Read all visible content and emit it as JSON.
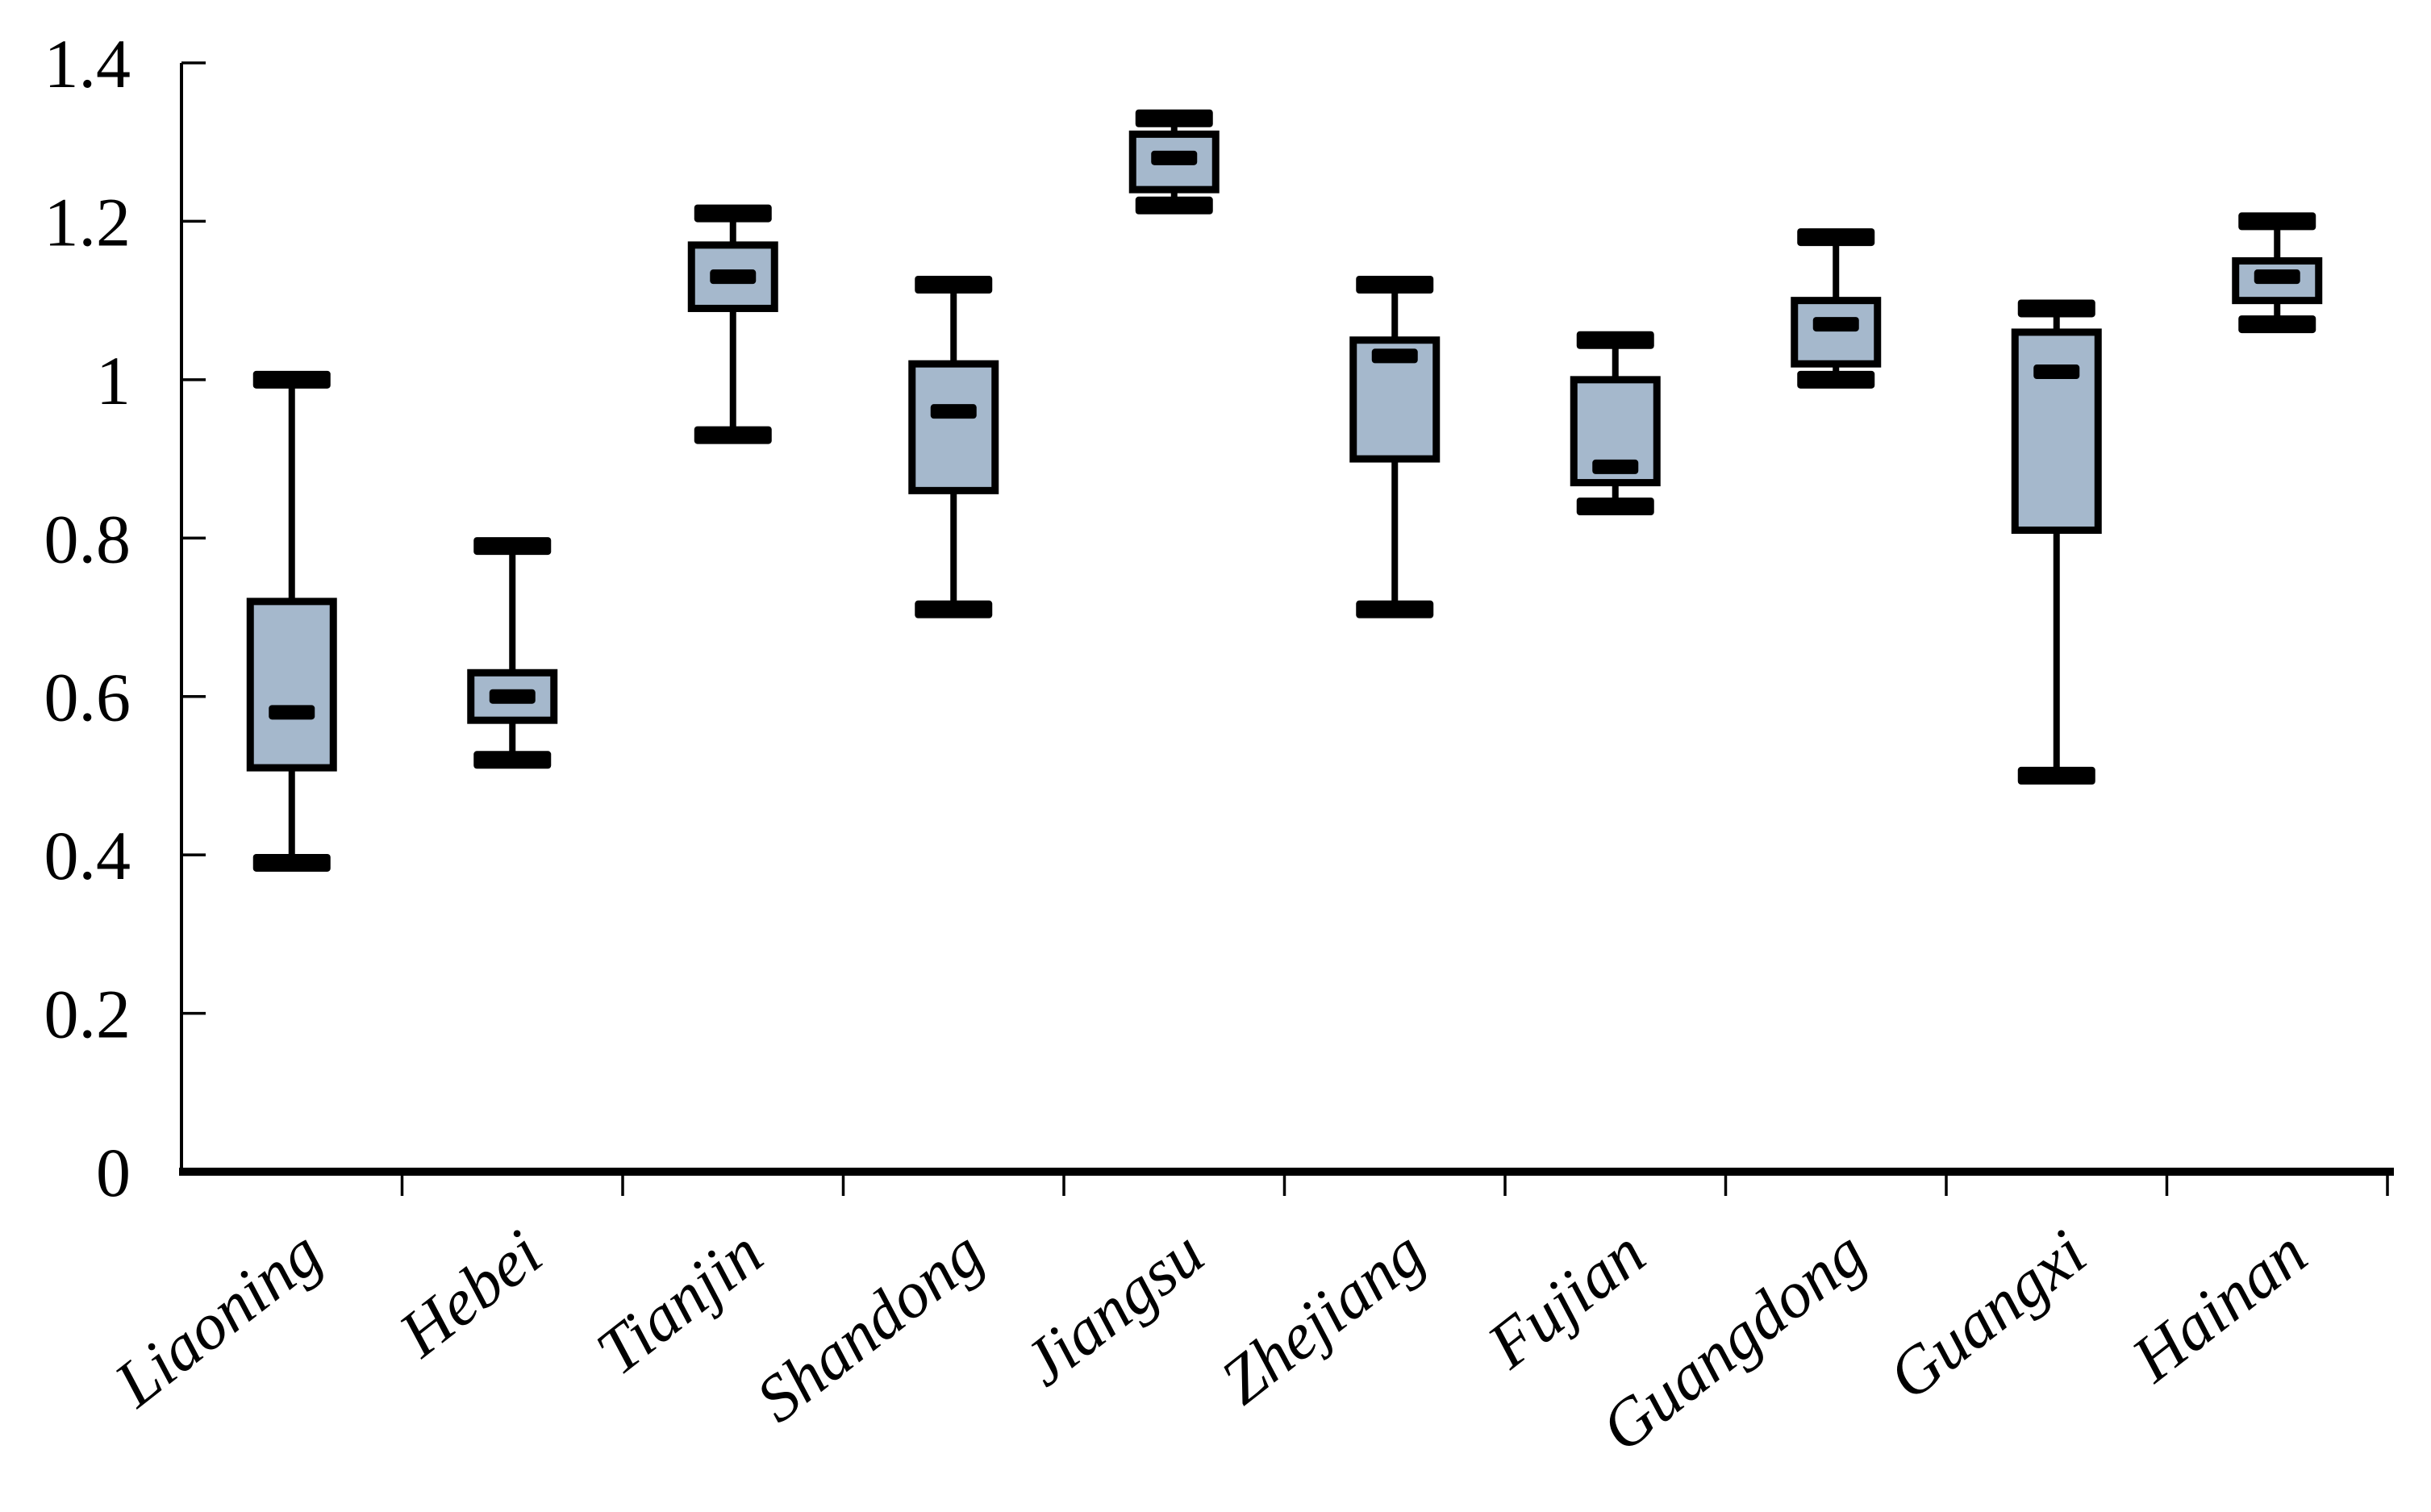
{
  "chart_data": {
    "type": "box",
    "title": "",
    "xlabel": "",
    "ylabel": "",
    "categories": [
      "Liaoning",
      "Hebei",
      "Tianjin",
      "Shandong",
      "Jiangsu",
      "Zhejiang",
      "Fujian",
      "Guangdong",
      "Guangxi",
      "Hainan"
    ],
    "series": [
      {
        "name": "Liaoning",
        "min": 0.39,
        "q1": 0.51,
        "median": 0.58,
        "q3": 0.72,
        "max": 1.0
      },
      {
        "name": "Hebei",
        "min": 0.52,
        "q1": 0.57,
        "median": 0.6,
        "q3": 0.63,
        "max": 0.79
      },
      {
        "name": "Tianjin",
        "min": 0.93,
        "q1": 1.09,
        "median": 1.13,
        "q3": 1.17,
        "max": 1.21
      },
      {
        "name": "Shandong",
        "min": 0.71,
        "q1": 0.86,
        "median": 0.96,
        "q3": 1.02,
        "max": 1.12
      },
      {
        "name": "Jiangsu",
        "min": 1.22,
        "q1": 1.24,
        "median": 1.28,
        "q3": 1.31,
        "max": 1.33
      },
      {
        "name": "Zhejiang",
        "min": 0.71,
        "q1": 0.9,
        "median": 1.03,
        "q3": 1.05,
        "max": 1.12
      },
      {
        "name": "Fujian",
        "min": 0.84,
        "q1": 0.87,
        "median": 0.89,
        "q3": 1.0,
        "max": 1.05
      },
      {
        "name": "Guangdong",
        "min": 1.0,
        "q1": 1.02,
        "median": 1.07,
        "q3": 1.1,
        "max": 1.18
      },
      {
        "name": "Guangxi",
        "min": 0.5,
        "q1": 0.81,
        "median": 1.01,
        "q3": 1.06,
        "max": 1.09
      },
      {
        "name": "Hainan",
        "min": 1.07,
        "q1": 1.1,
        "median": 1.13,
        "q3": 1.15,
        "max": 1.2
      }
    ],
    "y_axis": {
      "min": 0,
      "max": 1.4,
      "step": 0.2,
      "tick_labels": [
        "0",
        "0.2",
        "0.4",
        "0.6",
        "0.8",
        "1",
        "1.2",
        "1.4"
      ]
    },
    "legend": "none",
    "grid": "off",
    "colors": {
      "box_fill": "#a5b8cc",
      "line": "#000000",
      "background": "#ffffff"
    }
  }
}
